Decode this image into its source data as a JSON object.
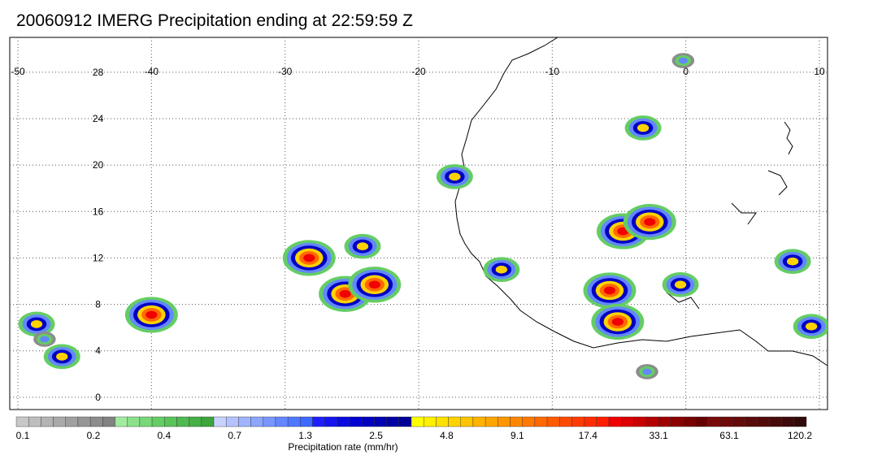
{
  "title": "20060912 IMERG Precipitation ending at 22:59:59 Z",
  "map": {
    "lon_range": [
      -50,
      10
    ],
    "lat_range": [
      -0.5,
      31
    ],
    "lon_ticks": [
      -50,
      -40,
      -30,
      -20,
      -10,
      0,
      10
    ],
    "lon_tick_labels": [
      "-50",
      "-40",
      "-30",
      "-20",
      "-10",
      "0",
      "10"
    ],
    "lat_ticks": [
      0,
      4,
      8,
      12,
      16,
      20,
      24,
      28
    ],
    "lat_tick_labels": [
      "0",
      "4",
      "8",
      "12",
      "16",
      "20",
      "24",
      "28"
    ],
    "grid": true,
    "grid_style": "dotted"
  },
  "colorbar": {
    "label": "Precipitation rate (mm/hr)",
    "tick_labels": [
      "0.1",
      "0.2",
      "0.4",
      "0.7",
      "1.3",
      "2.5",
      "4.8",
      "9.1",
      "17.4",
      "33.1",
      "63.1",
      "120.2"
    ],
    "colors": [
      "#c8c8c8",
      "#bebebe",
      "#b4b4b4",
      "#aaaaaa",
      "#a0a0a0",
      "#969696",
      "#8c8c8c",
      "#828282",
      "#a0eba0",
      "#8ce18c",
      "#78d778",
      "#64cd64",
      "#5ac35a",
      "#50b950",
      "#46af46",
      "#3ca53c",
      "#c8d2ff",
      "#b4c3ff",
      "#a0b4ff",
      "#8ca5ff",
      "#7896ff",
      "#6487ff",
      "#5078ff",
      "#3c69ff",
      "#1e1eff",
      "#1414f0",
      "#0a0ae1",
      "#0000d2",
      "#0000c3",
      "#0000b4",
      "#0000a5",
      "#000096",
      "#ffff00",
      "#fff000",
      "#ffe100",
      "#ffd200",
      "#ffc300",
      "#ffb400",
      "#ffa500",
      "#ff9600",
      "#ff8700",
      "#ff7800",
      "#ff6900",
      "#ff5a00",
      "#ff4b00",
      "#ff3c00",
      "#ff2d00",
      "#ff1e00",
      "#f00000",
      "#dc0000",
      "#c80000",
      "#b40000",
      "#a00000",
      "#8c0000",
      "#780000",
      "#640000",
      "#780a0a",
      "#6e0a0a",
      "#640a0a",
      "#5a0a0a",
      "#500a0a",
      "#460a0a",
      "#3c0a0a",
      "#320a0a"
    ]
  },
  "precip_cells": [
    {
      "lon": -28.2,
      "lat": 12.0,
      "level": "heavy"
    },
    {
      "lon": -25.5,
      "lat": 8.9,
      "level": "heavy"
    },
    {
      "lon": -23.3,
      "lat": 9.7,
      "level": "heavy"
    },
    {
      "lon": -24.2,
      "lat": 13.0,
      "level": "moderate"
    },
    {
      "lon": -40.0,
      "lat": 7.1,
      "level": "heavy"
    },
    {
      "lon": -48.6,
      "lat": 6.3,
      "level": "moderate"
    },
    {
      "lon": -46.7,
      "lat": 3.5,
      "level": "moderate"
    },
    {
      "lon": -17.3,
      "lat": 19.0,
      "level": "moderate"
    },
    {
      "lon": -3.2,
      "lat": 23.2,
      "level": "moderate"
    },
    {
      "lon": -4.7,
      "lat": 14.3,
      "level": "heavy"
    },
    {
      "lon": -2.7,
      "lat": 15.1,
      "level": "heavy"
    },
    {
      "lon": -5.7,
      "lat": 9.2,
      "level": "heavy"
    },
    {
      "lon": -5.1,
      "lat": 6.5,
      "level": "heavy"
    },
    {
      "lon": 8.0,
      "lat": 11.7,
      "level": "moderate"
    },
    {
      "lon": -13.8,
      "lat": 11.0,
      "level": "moderate"
    },
    {
      "lon": -0.4,
      "lat": 9.7,
      "level": "moderate"
    },
    {
      "lon": -2.9,
      "lat": 2.2,
      "level": "light"
    },
    {
      "lon": 9.4,
      "lat": 6.1,
      "level": "moderate"
    },
    {
      "lon": -48.0,
      "lat": 5.0,
      "level": "light"
    },
    {
      "lon": -0.2,
      "lat": 29.0,
      "level": "light"
    }
  ],
  "level_colors": {
    "light": [
      "#8c8c8c",
      "#64cd64",
      "#6487ff"
    ],
    "moderate": [
      "#64cd64",
      "#6487ff",
      "#0000c3",
      "#ffd200"
    ],
    "heavy": [
      "#64cd64",
      "#6487ff",
      "#0000c3",
      "#ffd200",
      "#ff6900",
      "#f00000"
    ]
  }
}
